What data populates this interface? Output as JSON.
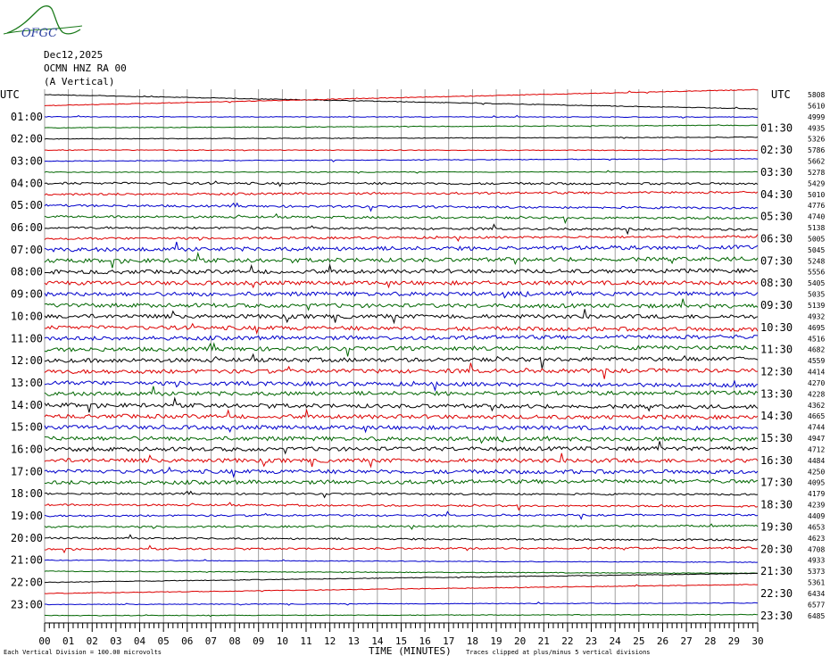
{
  "logo_text": "OFGC",
  "header": {
    "date": "Dec12,2025",
    "station": "OCMN HNZ RA 00",
    "component": "(A Vertical)"
  },
  "left_axis_label": "UTC",
  "right_axis_label": "UTC",
  "footer": {
    "vertical_division": "Each Vertical Division =  100.00 microvolts",
    "xlabel": "TIME (MINUTES)",
    "clip_note": "Traces clipped at plus/minus 5 vertical divisions"
  },
  "colors": {
    "black": "#000000",
    "red": "#dd0000",
    "blue": "#0000cc",
    "green": "#006600",
    "grid": "#888888"
  },
  "chart_data": {
    "type": "line",
    "xlim": [
      0,
      30
    ],
    "x_ticks": [
      "00",
      "01",
      "02",
      "03",
      "04",
      "05",
      "06",
      "07",
      "08",
      "09",
      "10",
      "11",
      "12",
      "13",
      "14",
      "15",
      "16",
      "17",
      "18",
      "19",
      "20",
      "21",
      "22",
      "23",
      "24",
      "25",
      "26",
      "27",
      "28",
      "29",
      "30"
    ],
    "left_hour_labels": [
      "01:00",
      "02:00",
      "03:00",
      "04:00",
      "05:00",
      "06:00",
      "07:00",
      "08:00",
      "09:00",
      "10:00",
      "11:00",
      "12:00",
      "13:00",
      "14:00",
      "15:00",
      "16:00",
      "17:00",
      "18:00",
      "19:00",
      "20:00",
      "21:00",
      "22:00",
      "23:00"
    ],
    "right_hour_labels": [
      "01:30",
      "02:30",
      "03:30",
      "04:30",
      "05:30",
      "06:30",
      "07:30",
      "08:30",
      "09:30",
      "10:30",
      "11:30",
      "12:30",
      "13:30",
      "14:30",
      "15:30",
      "16:30",
      "17:30",
      "18:30",
      "19:30",
      "20:30",
      "21:30",
      "22:30",
      "23:30"
    ],
    "trace_colors": [
      "black",
      "red",
      "blue",
      "green"
    ],
    "trace_counts": [
      "5808",
      "5610",
      "4999",
      "4935",
      "5326",
      "5786",
      "5662",
      "5278",
      "5429",
      "5010",
      "4776",
      "4740",
      "5138",
      "5005",
      "5045",
      "5248",
      "5556",
      "5405",
      "5035",
      "5139",
      "4932",
      "4695",
      "4516",
      "4682",
      "4559",
      "4414",
      "4270",
      "4228",
      "4362",
      "4665",
      "4744",
      "4947",
      "4712",
      "4484",
      "4250",
      "4095",
      "4179",
      "4239",
      "4409",
      "4653",
      "4623",
      "4708",
      "4933",
      "5373",
      "5361",
      "6434",
      "6577",
      "6485"
    ]
  }
}
